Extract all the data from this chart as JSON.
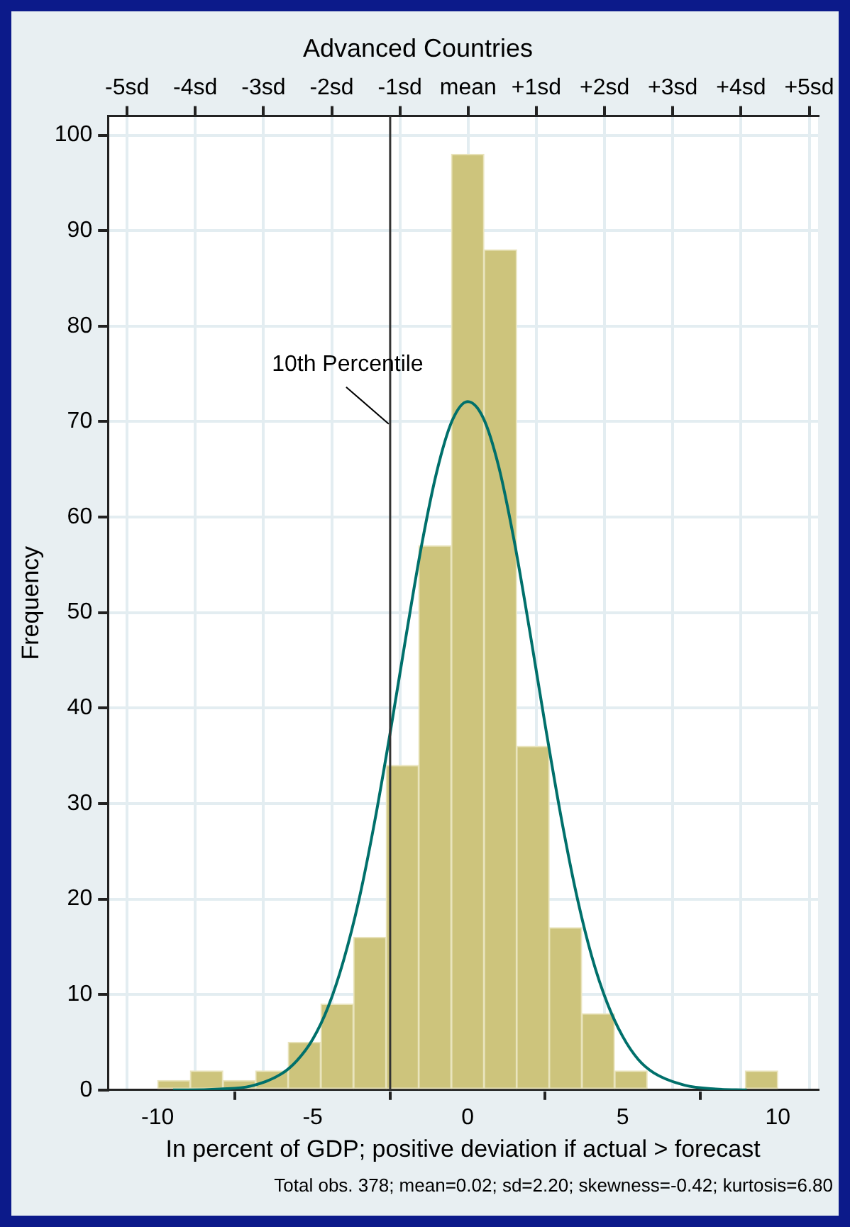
{
  "chart_data": {
    "type": "histogram",
    "title": "Advanced Countries",
    "xlabel": "In percent of GDP; positive deviation if actual > forecast",
    "ylabel": "Frequency",
    "annotations": [
      "Total obs. 378; mean=0.02; sd=2.20; skewness=-0.42; kurtosis=6.80"
    ],
    "series": [
      {
        "color": "#cdc47c",
        "bins": [
          -10,
          -8.95,
          -7.89,
          -6.84,
          -5.79,
          -4.74,
          -3.68,
          -2.63,
          -1.58,
          -0.53,
          0.53,
          1.58,
          2.63,
          3.68,
          4.74,
          5.79,
          6.84,
          7.89,
          8.95,
          10
        ],
        "values": [
          1,
          2,
          1,
          2,
          5,
          9,
          16,
          34,
          57,
          98,
          88,
          36,
          17,
          8,
          2,
          0,
          0,
          0,
          2
        ]
      },
      {
        "type": "line",
        "color": "#00706b",
        "x": [
          -9.5,
          -9,
          -8,
          -7,
          -6,
          -5.5,
          -5,
          -4.5,
          -4,
          -3.5,
          -3,
          -2.5,
          -2,
          -1.5,
          -1,
          -0.5,
          0,
          0.5,
          1,
          1.5,
          2,
          2.5,
          3,
          3.5,
          4,
          4.5,
          5,
          5.5,
          6,
          7,
          8,
          9
        ],
        "values": [
          0,
          0,
          0.1,
          0.4,
          1.7,
          3.1,
          5.3,
          8.7,
          13.6,
          20,
          28.1,
          37.4,
          47.3,
          56.8,
          64.7,
          70.1,
          72.1,
          70.4,
          65.3,
          57.5,
          48.1,
          38.2,
          28.8,
          20.6,
          14,
          9.1,
          5.6,
          3.2,
          1.8,
          0.5,
          0.1,
          0
        ]
      }
    ],
    "xlim": [
      -11.6,
      11.3
    ],
    "xticks": [
      -10,
      -5,
      0,
      5,
      10
    ],
    "x2lim": [
      -5.28,
      5.13
    ],
    "x2ticks": [
      {
        "value": -5,
        "label": "-5sd"
      },
      {
        "value": -4,
        "label": "-4sd"
      },
      {
        "value": -3,
        "label": "-3sd"
      },
      {
        "value": -2,
        "label": "-2sd"
      },
      {
        "value": -1,
        "label": "-1sd"
      },
      {
        "value": 0,
        "label": "mean"
      },
      {
        "value": 1,
        "label": "+1sd"
      },
      {
        "value": 2,
        "label": "+2sd"
      },
      {
        "value": 3,
        "label": "+3sd"
      },
      {
        "value": 4,
        "label": "+4sd"
      },
      {
        "value": 5,
        "label": "+5sd"
      }
    ],
    "ylim": [
      0,
      102
    ],
    "yticks": [
      0,
      10,
      20,
      30,
      40,
      50,
      60,
      70,
      80,
      90,
      100
    ],
    "ref_lines": [
      {
        "axis": "x",
        "value": -2.5,
        "label": "10th Percentile",
        "color": "#333333"
      }
    ],
    "grid": true,
    "legend": false
  }
}
